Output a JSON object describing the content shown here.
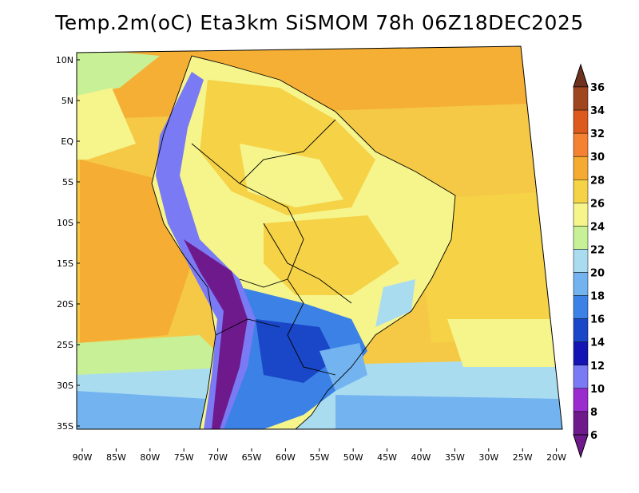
{
  "title": "Temp.2m(oC) Eta3km SiSMOM 78h 06Z18DEC2025",
  "lat_labels": [
    "10N",
    "5N",
    "EQ",
    "5S",
    "10S",
    "15S",
    "20S",
    "25S",
    "30S",
    "35S"
  ],
  "lon_labels": [
    "90W",
    "85W",
    "80W",
    "75W",
    "70W",
    "65W",
    "60W",
    "55W",
    "50W",
    "45W",
    "40W",
    "35W",
    "30W",
    "25W",
    "20W"
  ],
  "colorbar": {
    "labels": [
      "6",
      "8",
      "10",
      "12",
      "14",
      "16",
      "18",
      "20",
      "22",
      "24",
      "26",
      "28",
      "30",
      "32",
      "34",
      "36"
    ],
    "colors": [
      "#6e1a8c",
      "#9b2dcf",
      "#7a7af5",
      "#1414b4",
      "#1a46c8",
      "#3c82e6",
      "#73b4f0",
      "#aadcf0",
      "#c8f096",
      "#f5f58c",
      "#f5d246",
      "#f5aa32",
      "#f58232",
      "#dc5a1e",
      "#a0461e",
      "#6e321e"
    ]
  }
}
